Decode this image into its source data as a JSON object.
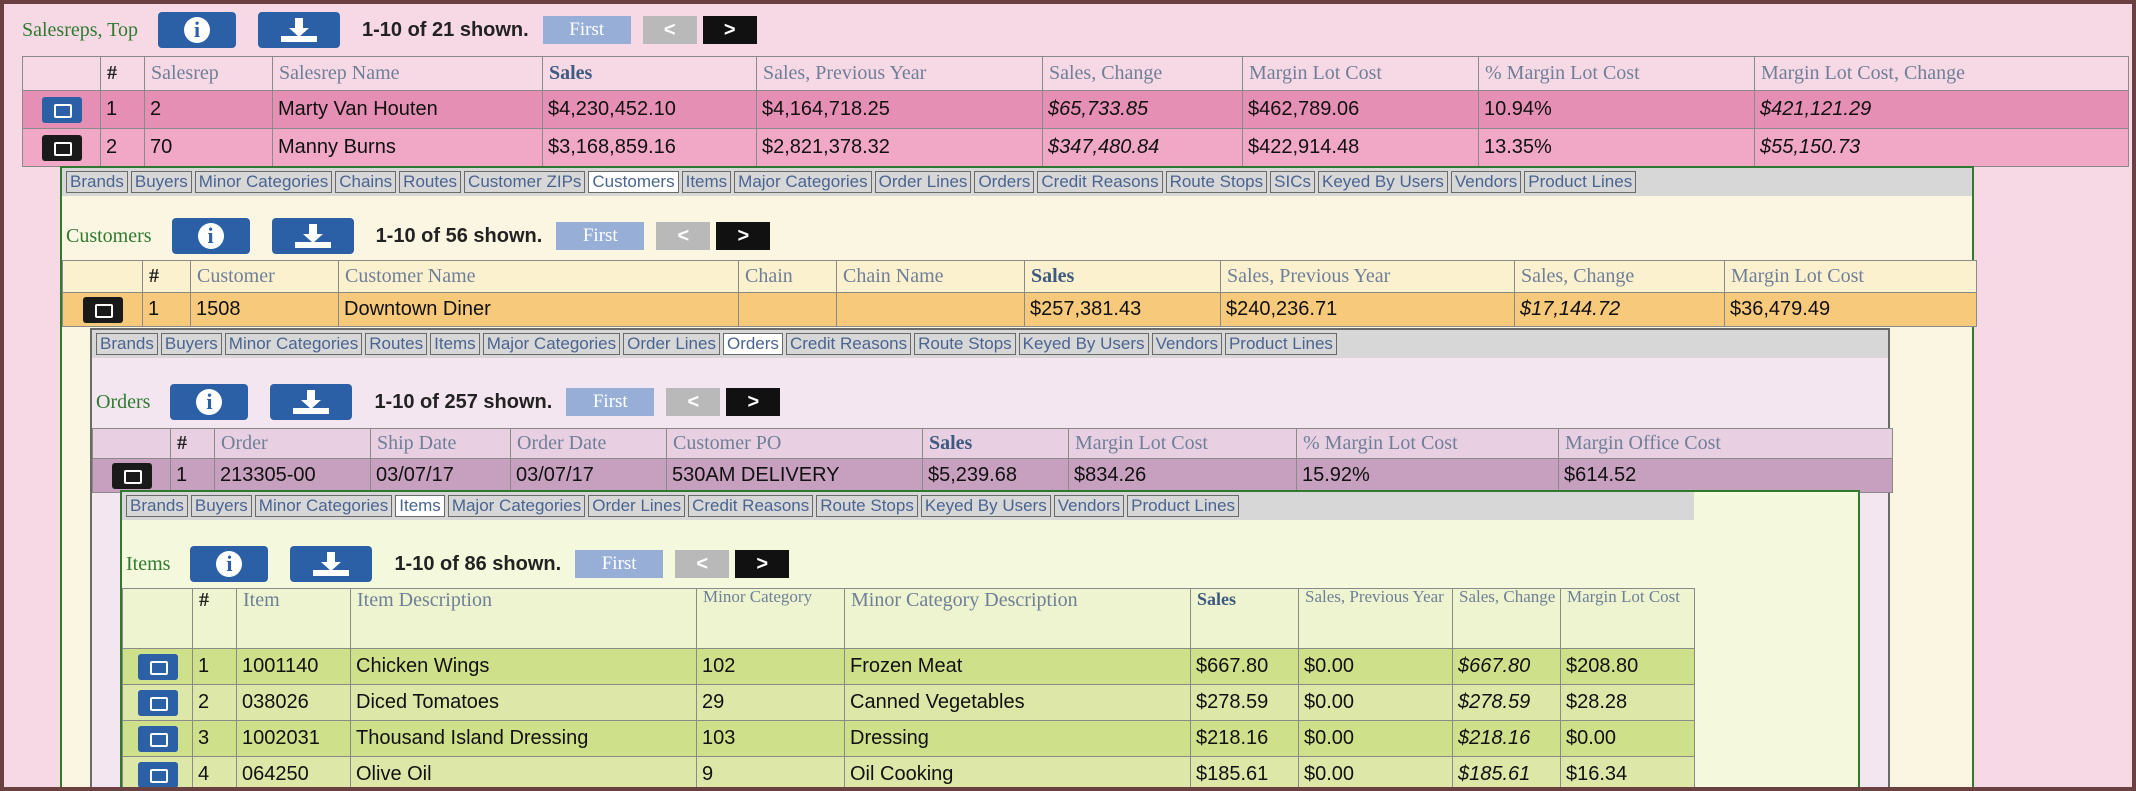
{
  "salesreps": {
    "title": "Salesreps, Top",
    "info_icon": "info-icon",
    "download_icon": "download-icon",
    "count": "1-10 of 21 shown.",
    "first": "First",
    "prev": "<",
    "next": ">",
    "columns": [
      "#",
      "Salesrep",
      "Salesrep Name",
      "Sales",
      "Sales, Previous Year",
      "Sales, Change",
      "Margin Lot Cost",
      "% Margin Lot Cost",
      "Margin Lot Cost, Change"
    ],
    "rows": [
      [
        "1",
        "2",
        "Marty Van Houten",
        "$4,230,452.10",
        "$4,164,718.25",
        "$65,733.85",
        "$462,789.06",
        "10.94%",
        "$421,121.29"
      ],
      [
        "2",
        "70",
        "Manny Burns",
        "$3,168,859.16",
        "$2,821,378.32",
        "$347,480.84",
        "$422,914.48",
        "13.35%",
        "$55,150.73"
      ]
    ],
    "tabs": [
      "Brands",
      "Buyers",
      "Minor Categories",
      "Chains",
      "Routes",
      "Customer ZIPs",
      "Customers",
      "Items",
      "Major Categories",
      "Order Lines",
      "Orders",
      "Credit Reasons",
      "Route Stops",
      "SICs",
      "Keyed By Users",
      "Vendors",
      "Product Lines"
    ],
    "selected_tab": "Customers"
  },
  "customers": {
    "title": "Customers",
    "count": "1-10 of 56 shown.",
    "first": "First",
    "prev": "<",
    "next": ">",
    "columns": [
      "#",
      "Customer",
      "Customer Name",
      "Chain",
      "Chain Name",
      "Sales",
      "Sales, Previous Year",
      "Sales, Change",
      "Margin Lot Cost"
    ],
    "rows": [
      [
        "1",
        "1508",
        "Downtown Diner",
        "",
        "",
        "$257,381.43",
        "$240,236.71",
        "$17,144.72",
        "$36,479.49"
      ]
    ],
    "tabs": [
      "Brands",
      "Buyers",
      "Minor Categories",
      "Routes",
      "Items",
      "Major Categories",
      "Order Lines",
      "Orders",
      "Credit Reasons",
      "Route Stops",
      "Keyed By Users",
      "Vendors",
      "Product Lines"
    ],
    "selected_tab": "Orders"
  },
  "orders": {
    "title": "Orders",
    "count": "1-10 of 257 shown.",
    "first": "First",
    "prev": "<",
    "next": ">",
    "columns": [
      "#",
      "Order",
      "Ship Date",
      "Order Date",
      "Customer PO",
      "Sales",
      "Margin Lot Cost",
      "% Margin Lot Cost",
      "Margin Office Cost"
    ],
    "rows": [
      [
        "1",
        "213305-00",
        "03/07/17",
        "03/07/17",
        "530AM DELIVERY",
        "$5,239.68",
        "$834.26",
        "15.92%",
        "$614.52"
      ]
    ],
    "tabs": [
      "Brands",
      "Buyers",
      "Minor Categories",
      "Items",
      "Major Categories",
      "Order Lines",
      "Credit Reasons",
      "Route Stops",
      "Keyed By Users",
      "Vendors",
      "Product Lines"
    ],
    "selected_tab": "Items"
  },
  "items": {
    "title": "Items",
    "count": "1-10 of 86 shown.",
    "first": "First",
    "prev": "<",
    "next": ">",
    "columns": [
      "#",
      "Item",
      "Item Description",
      "Minor Category",
      "Minor Category Description",
      "Sales",
      "Sales, Previous Year",
      "Sales, Change",
      "Margin Lot Cost"
    ],
    "rows": [
      [
        "1",
        "1001140",
        "Chicken Wings",
        "102",
        "Frozen Meat",
        "$667.80",
        "$0.00",
        "$667.80",
        "$208.80"
      ],
      [
        "2",
        "038026",
        "Diced Tomatoes",
        "29",
        "Canned Vegetables",
        "$278.59",
        "$0.00",
        "$278.59",
        "$28.28"
      ],
      [
        "3",
        "1002031",
        "Thousand Island Dressing",
        "103",
        "Dressing",
        "$218.16",
        "$0.00",
        "$218.16",
        "$0.00"
      ],
      [
        "4",
        "064250",
        "Olive Oil",
        "9",
        "Oil Cooking",
        "$185.61",
        "$0.00",
        "$185.61",
        "$16.34"
      ]
    ]
  },
  "colors": {
    "rep_row1": "#e58fb5",
    "rep_row2": "#f0a8c6",
    "cust_row": "#f7c97b",
    "order_row": "#c79fbf",
    "item_row_a": "#cfe08a",
    "item_row_b": "#dde8a8",
    "accent": "#2b5fa6",
    "title_green": "#2f7a2f"
  }
}
